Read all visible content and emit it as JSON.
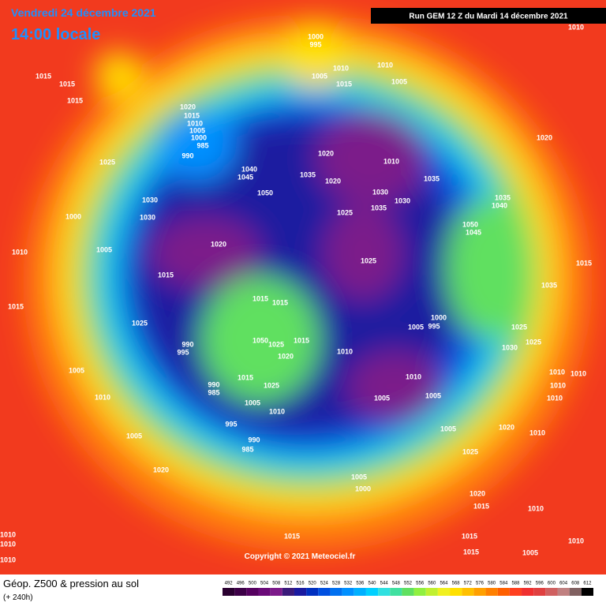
{
  "header": {
    "date": "Vendredi 24 décembre 2021",
    "time": "14:00 locale",
    "run": "Run GEM 12 Z du Mardi 14 décembre 2021"
  },
  "copyright": "Copyright © 2021 Meteociel.fr",
  "footer": {
    "title": "Géop. Z500 & pression au sol",
    "subtitle": "(+ 240h)"
  },
  "isobar_labels": [
    "1010",
    "1000",
    "995",
    "1010",
    "1005",
    "1015",
    "1010",
    "1005",
    "1015",
    "1015",
    "1015",
    "1020",
    "1015",
    "1010",
    "1005",
    "1000",
    "985",
    "990",
    "1025",
    "1040",
    "1045",
    "1050",
    "1035",
    "1020",
    "1020",
    "1010",
    "1035",
    "1030",
    "1030",
    "1035",
    "1025",
    "1030",
    "1030",
    "1000",
    "1035",
    "1040",
    "1050",
    "1045",
    "1020",
    "1010",
    "1005",
    "1020",
    "1025",
    "1015",
    "1035",
    "1015",
    "1015",
    "1015",
    "1015",
    "1025",
    "1000",
    "995",
    "1005",
    "1025",
    "990",
    "995",
    "1050",
    "1025",
    "1015",
    "1010",
    "1020",
    "1030",
    "1025",
    "1005",
    "1010",
    "1010",
    "990",
    "985",
    "1015",
    "1025",
    "1010",
    "1005",
    "1005",
    "1010",
    "1010",
    "1010",
    "1005",
    "1010",
    "995",
    "1005",
    "1020",
    "1010",
    "1005",
    "990",
    "985",
    "1025",
    "1020",
    "1005",
    "1000",
    "1020",
    "1015",
    "1010",
    "1010",
    "1010",
    "1015",
    "1015",
    "1010",
    "1005",
    "1015",
    "1010"
  ],
  "colorbar": {
    "ticks": [
      492,
      496,
      500,
      504,
      508,
      512,
      516,
      520,
      524,
      528,
      532,
      536,
      540,
      544,
      548,
      552,
      556,
      560,
      564,
      568,
      572,
      576,
      580,
      584,
      588,
      592,
      596,
      600,
      604,
      608,
      612
    ],
    "colors": [
      "#2a0030",
      "#3d0047",
      "#55005f",
      "#6a0a78",
      "#7c1a8a",
      "#3a1a7a",
      "#1a1aa0",
      "#0030c0",
      "#0050e0",
      "#0070f0",
      "#0090ff",
      "#00b0ff",
      "#00d0ff",
      "#30e0e0",
      "#40e0a0",
      "#60e060",
      "#90f040",
      "#c0f030",
      "#f0f020",
      "#ffe000",
      "#ffc000",
      "#ffa000",
      "#ff8000",
      "#ff6000",
      "#ff4020",
      "#f03030",
      "#e04040",
      "#d06060",
      "#c08080",
      "#806060",
      "#000000"
    ]
  }
}
